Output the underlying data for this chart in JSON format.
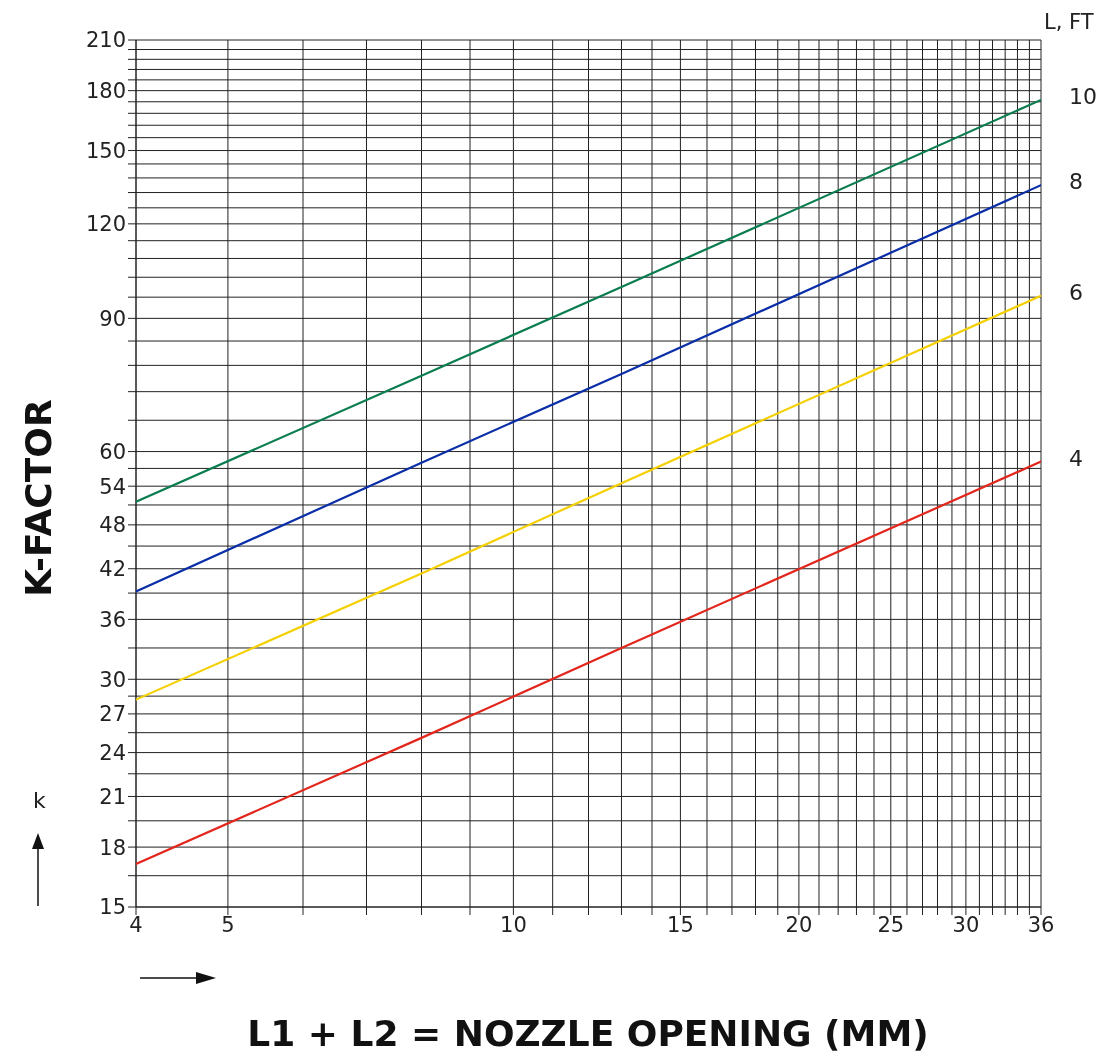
{
  "chart_data": {
    "type": "line",
    "xlabel": "L1 + L2 = NOZZLE OPENING (MM)",
    "ylabel": "K-FACTOR",
    "legend_title": "L, FT",
    "log": "xy",
    "grid": true,
    "marker": "none",
    "line_style": "solid",
    "xlim": [
      4,
      36
    ],
    "ylim": [
      15,
      210
    ],
    "xticks": [
      4,
      5,
      {
        "value": 6,
        "label": null
      },
      {
        "value": 7,
        "label": null
      },
      {
        "value": 8,
        "label": null
      },
      {
        "value": 9,
        "label": null
      },
      10,
      {
        "value": 11,
        "label": null
      },
      {
        "value": 12,
        "label": null
      },
      {
        "value": 13,
        "label": null
      },
      {
        "value": 14,
        "label": null
      },
      15,
      {
        "value": 16,
        "label": null
      },
      {
        "value": 17,
        "label": null
      },
      {
        "value": 18,
        "label": null
      },
      {
        "value": 19,
        "label": null
      },
      20,
      {
        "value": 21,
        "label": null
      },
      {
        "value": 22,
        "label": null
      },
      {
        "value": 23,
        "label": null
      },
      {
        "value": 24,
        "label": null
      },
      25,
      {
        "value": 26,
        "label": null
      },
      {
        "value": 27,
        "label": null
      },
      {
        "value": 28,
        "label": null
      },
      {
        "value": 29,
        "label": null
      },
      30,
      {
        "value": 31,
        "label": null
      },
      {
        "value": 32,
        "label": null
      },
      {
        "value": 33,
        "label": null
      },
      {
        "value": 34,
        "label": null
      },
      {
        "value": 35,
        "label": null
      },
      36
    ],
    "yticks": [
      15,
      {
        "value": 16.5,
        "label": null
      },
      18,
      {
        "value": 19.5,
        "label": null
      },
      21,
      {
        "value": 22.5,
        "label": null
      },
      24,
      {
        "value": 25.5,
        "label": null
      },
      27,
      {
        "value": 28.5,
        "label": null
      },
      30,
      {
        "value": 33,
        "label": null
      },
      36,
      {
        "value": 39,
        "label": null
      },
      42,
      {
        "value": 45,
        "label": null
      },
      48,
      {
        "value": 51,
        "label": null
      },
      54,
      {
        "value": 57,
        "label": null
      },
      60,
      {
        "value": 66,
        "label": null
      },
      {
        "value": 72,
        "label": null
      },
      {
        "value": 78,
        "label": null
      },
      {
        "value": 84,
        "label": null
      },
      90,
      {
        "value": 96,
        "label": null
      },
      {
        "value": 102,
        "label": null
      },
      {
        "value": 108,
        "label": null
      },
      {
        "value": 114,
        "label": null
      },
      120,
      {
        "value": 126,
        "label": null
      },
      {
        "value": 132,
        "label": null
      },
      {
        "value": 138,
        "label": null
      },
      {
        "value": 144,
        "label": null
      },
      150,
      {
        "value": 156,
        "label": null
      },
      {
        "value": 162,
        "label": null
      },
      {
        "value": 168,
        "label": null
      },
      {
        "value": 174,
        "label": null
      },
      180,
      {
        "value": 186,
        "label": null
      },
      {
        "value": 192,
        "label": null
      },
      {
        "value": 198,
        "label": null
      },
      {
        "value": 204,
        "label": null
      },
      210
    ],
    "annotations": [
      "k"
    ],
    "series": [
      {
        "name": "10",
        "color": "#0a7d4f",
        "x": [
          4,
          8,
          13,
          36
        ],
        "values": [
          51.5,
          75.6,
          99,
          175
        ]
      },
      {
        "name": "8",
        "color": "#0a2ea8",
        "x": [
          4,
          8,
          13,
          36
        ],
        "values": [
          39.2,
          58,
          76,
          135
        ]
      },
      {
        "name": "6",
        "color": "#f5d000",
        "x": [
          4,
          8,
          13,
          36
        ],
        "values": [
          28.2,
          41.4,
          54.5,
          96.4
        ]
      },
      {
        "name": "4",
        "color": "#e3261c",
        "x": [
          4,
          8,
          13,
          36
        ],
        "values": [
          17.1,
          25.1,
          33,
          58.2
        ]
      }
    ]
  }
}
